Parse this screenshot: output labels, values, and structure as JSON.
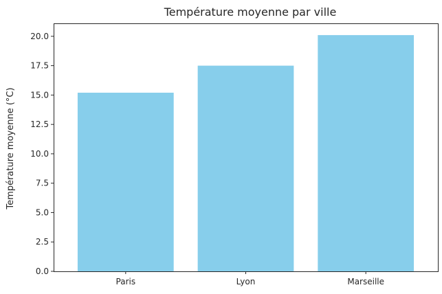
{
  "chart_data": {
    "type": "bar",
    "title": "Température moyenne par ville",
    "xlabel": "",
    "ylabel": "Température moyenne (°C)",
    "categories": [
      "Paris",
      "Lyon",
      "Marseille"
    ],
    "values": [
      15.2,
      17.5,
      20.1
    ],
    "ylim": [
      0,
      21.1
    ],
    "yticks": [
      0.0,
      2.5,
      5.0,
      7.5,
      10.0,
      12.5,
      15.0,
      17.5,
      20.0
    ],
    "ytick_labels": [
      "0.0",
      "2.5",
      "5.0",
      "7.5",
      "10.0",
      "12.5",
      "15.0",
      "17.5",
      "20.0"
    ],
    "grid": false,
    "bar_color": "#87CEEB"
  }
}
